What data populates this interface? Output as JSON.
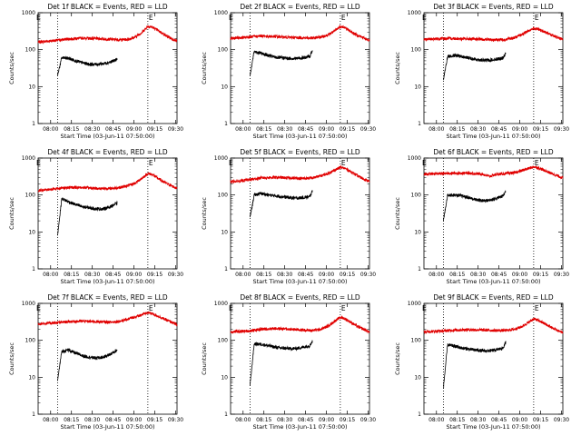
{
  "chart_data": [
    {
      "type": "line",
      "title": "Det 1f BLACK = Events, RED = LLD",
      "xlabel": "Start Time (03-Jun-11 07:50:00)",
      "ylabel": "Counts/sec",
      "yscale": "log",
      "ylim": [
        1,
        1000
      ],
      "xticks": [
        "08:00",
        "08:15",
        "08:30",
        "08:45",
        "09:00",
        "09:15",
        "09:30"
      ],
      "yticks": [
        "1",
        "10",
        "100",
        "1000"
      ],
      "xlim": [
        3,
        103
      ],
      "vlines": [
        17,
        82
      ],
      "vline_labels": [
        {
          "text": "E",
          "x": 1
        },
        {
          "text": "E",
          "x": 82
        }
      ],
      "series": [
        {
          "name": "Events",
          "color": "#000000",
          "x": [
            17,
            20,
            25,
            30,
            35,
            40,
            45,
            50,
            55,
            60
          ],
          "y": [
            20,
            60,
            58,
            50,
            44,
            40,
            40,
            42,
            46,
            55
          ]
        },
        {
          "name": "LLD",
          "color": "#e00000",
          "x": [
            3,
            10,
            17,
            25,
            35,
            45,
            55,
            62,
            68,
            73,
            78,
            82,
            85,
            90,
            95,
            100,
            103
          ],
          "y": [
            160,
            170,
            180,
            195,
            205,
            200,
            190,
            185,
            190,
            220,
            300,
            430,
            410,
            320,
            240,
            190,
            170
          ]
        }
      ]
    },
    {
      "type": "line",
      "title": "Det 2f BLACK = Events, RED = LLD",
      "xlabel": "Start Time (03-Jun-11 07:50:00)",
      "ylabel": "Counts/sec",
      "yscale": "log",
      "ylim": [
        1,
        1000
      ],
      "xticks": [
        "08:00",
        "08:15",
        "08:30",
        "08:45",
        "09:00",
        "09:15",
        "09:30"
      ],
      "yticks": [
        "1",
        "10",
        "100",
        "1000"
      ],
      "xlim": [
        3,
        103
      ],
      "vlines": [
        17,
        82
      ],
      "vline_labels": [
        {
          "text": "E",
          "x": 1
        },
        {
          "text": "E",
          "x": 82
        }
      ],
      "series": [
        {
          "name": "Events",
          "color": "#000000",
          "x": [
            17,
            20,
            25,
            30,
            35,
            40,
            45,
            50,
            55,
            60,
            62
          ],
          "y": [
            20,
            90,
            80,
            70,
            62,
            60,
            58,
            58,
            60,
            65,
            100
          ]
        },
        {
          "name": "LLD",
          "color": "#e00000",
          "x": [
            3,
            10,
            17,
            25,
            35,
            45,
            55,
            62,
            68,
            73,
            78,
            82,
            85,
            90,
            95,
            100,
            103
          ],
          "y": [
            200,
            210,
            220,
            235,
            225,
            215,
            210,
            205,
            220,
            250,
            320,
            430,
            400,
            300,
            240,
            200,
            180
          ]
        }
      ]
    },
    {
      "type": "line",
      "title": "Det 3f BLACK = Events, RED = LLD",
      "xlabel": "Start Time (03-Jun-11 07:50:00)",
      "ylabel": "Counts/sec",
      "yscale": "log",
      "ylim": [
        1,
        1000
      ],
      "xticks": [
        "08:00",
        "08:15",
        "08:30",
        "08:45",
        "09:00",
        "09:15",
        "09:30"
      ],
      "yticks": [
        "1",
        "10",
        "100",
        "1000"
      ],
      "xlim": [
        3,
        103
      ],
      "vlines": [
        17,
        82
      ],
      "vline_labels": [
        {
          "text": "E",
          "x": 1
        },
        {
          "text": "E",
          "x": 82
        }
      ],
      "series": [
        {
          "name": "Events",
          "color": "#000000",
          "x": [
            17,
            20,
            25,
            30,
            35,
            40,
            45,
            50,
            55,
            60,
            62
          ],
          "y": [
            15,
            65,
            70,
            65,
            60,
            55,
            52,
            52,
            55,
            60,
            80
          ]
        },
        {
          "name": "LLD",
          "color": "#e00000",
          "x": [
            3,
            10,
            17,
            25,
            35,
            45,
            55,
            62,
            68,
            73,
            78,
            82,
            85,
            90,
            95,
            100,
            103
          ],
          "y": [
            190,
            195,
            200,
            200,
            195,
            190,
            185,
            190,
            210,
            250,
            320,
            380,
            360,
            300,
            250,
            210,
            190
          ]
        }
      ]
    },
    {
      "type": "line",
      "title": "Det 4f BLACK = Events, RED = LLD",
      "xlabel": "Start Time (03-Jun-11 07:50:00)",
      "ylabel": "Counts/sec",
      "yscale": "log",
      "ylim": [
        1,
        1000
      ],
      "xticks": [
        "08:00",
        "08:15",
        "08:30",
        "08:45",
        "09:00",
        "09:15",
        "09:30"
      ],
      "yticks": [
        "1",
        "10",
        "100",
        "1000"
      ],
      "xlim": [
        3,
        103
      ],
      "vlines": [
        17,
        82
      ],
      "vline_labels": [
        {
          "text": "E",
          "x": 1
        },
        {
          "text": "E",
          "x": 82
        }
      ],
      "series": [
        {
          "name": "Events",
          "color": "#000000",
          "x": [
            17,
            20,
            25,
            30,
            35,
            40,
            45,
            50,
            55,
            60
          ],
          "y": [
            8,
            80,
            65,
            55,
            48,
            45,
            42,
            42,
            48,
            60
          ]
        },
        {
          "name": "LLD",
          "color": "#e00000",
          "x": [
            3,
            10,
            17,
            25,
            35,
            45,
            55,
            62,
            68,
            73,
            78,
            82,
            85,
            90,
            95,
            100,
            103
          ],
          "y": [
            130,
            140,
            150,
            160,
            160,
            150,
            150,
            160,
            180,
            210,
            290,
            380,
            360,
            270,
            210,
            170,
            150
          ]
        }
      ]
    },
    {
      "type": "line",
      "title": "Det 5f BLACK = Events, RED = LLD",
      "xlabel": "Start Time (03-Jun-11 07:50:00)",
      "ylabel": "Counts/sec",
      "yscale": "log",
      "ylim": [
        1,
        1000
      ],
      "xticks": [
        "08:00",
        "08:15",
        "08:30",
        "08:45",
        "09:00",
        "09:15",
        "09:30"
      ],
      "yticks": [
        "1",
        "10",
        "100",
        "1000"
      ],
      "xlim": [
        3,
        103
      ],
      "vlines": [
        17,
        82
      ],
      "vline_labels": [
        {
          "text": "E",
          "x": 1
        },
        {
          "text": "E",
          "x": 82
        }
      ],
      "series": [
        {
          "name": "Events",
          "color": "#000000",
          "x": [
            17,
            20,
            25,
            30,
            35,
            40,
            45,
            50,
            55,
            60,
            62
          ],
          "y": [
            25,
            100,
            110,
            100,
            95,
            90,
            85,
            82,
            85,
            90,
            130
          ]
        },
        {
          "name": "LLD",
          "color": "#e00000",
          "x": [
            3,
            10,
            17,
            25,
            35,
            45,
            55,
            62,
            68,
            73,
            78,
            82,
            85,
            90,
            95,
            100,
            103
          ],
          "y": [
            230,
            240,
            260,
            290,
            300,
            290,
            280,
            290,
            330,
            380,
            470,
            560,
            530,
            420,
            320,
            260,
            230
          ]
        }
      ]
    },
    {
      "type": "line",
      "title": "Det 6f BLACK = Events, RED = LLD",
      "xlabel": "Start Time (03-Jun-11 07:50:00)",
      "ylabel": "Counts/sec",
      "yscale": "log",
      "ylim": [
        1,
        1000
      ],
      "xticks": [
        "08:00",
        "08:15",
        "08:30",
        "08:45",
        "09:00",
        "09:15",
        "09:30"
      ],
      "yticks": [
        "1",
        "10",
        "100",
        "1000"
      ],
      "xlim": [
        3,
        103
      ],
      "vlines": [
        17,
        82
      ],
      "vline_labels": [
        {
          "text": "E",
          "x": 1
        },
        {
          "text": "E",
          "x": 82
        }
      ],
      "series": [
        {
          "name": "Events",
          "color": "#000000",
          "x": [
            17,
            20,
            25,
            30,
            35,
            40,
            45,
            50,
            55,
            60,
            62
          ],
          "y": [
            20,
            100,
            100,
            95,
            85,
            75,
            70,
            72,
            80,
            95,
            130
          ]
        },
        {
          "name": "LLD",
          "color": "#e00000",
          "x": [
            3,
            10,
            17,
            25,
            35,
            45,
            50,
            55,
            62,
            68,
            73,
            78,
            82,
            85,
            90,
            95,
            100,
            103
          ],
          "y": [
            370,
            375,
            380,
            390,
            390,
            370,
            320,
            360,
            380,
            400,
            450,
            520,
            580,
            550,
            460,
            380,
            320,
            290
          ]
        }
      ]
    },
    {
      "type": "line",
      "title": "Det 7f BLACK = Events, RED = LLD",
      "xlabel": "Start Time (03-Jun-11 07:50:00)",
      "ylabel": "Counts/sec",
      "yscale": "log",
      "ylim": [
        1,
        1000
      ],
      "xticks": [
        "08:00",
        "08:15",
        "08:30",
        "08:45",
        "09:00",
        "09:15",
        "09:30"
      ],
      "yticks": [
        "1",
        "10",
        "100",
        "1000"
      ],
      "xlim": [
        3,
        103
      ],
      "vlines": [
        17,
        82
      ],
      "vline_labels": [
        {
          "text": "E",
          "x": 1
        },
        {
          "text": "E",
          "x": 82
        }
      ],
      "series": [
        {
          "name": "Events",
          "color": "#000000",
          "x": [
            17,
            20,
            25,
            30,
            35,
            40,
            45,
            50,
            55,
            60
          ],
          "y": [
            8,
            50,
            55,
            45,
            38,
            35,
            33,
            35,
            42,
            55
          ]
        },
        {
          "name": "LLD",
          "color": "#e00000",
          "x": [
            3,
            10,
            17,
            25,
            35,
            45,
            55,
            62,
            68,
            73,
            78,
            82,
            85,
            90,
            95,
            100,
            103
          ],
          "y": [
            280,
            290,
            300,
            320,
            330,
            320,
            310,
            330,
            380,
            430,
            500,
            560,
            530,
            440,
            360,
            300,
            260
          ]
        }
      ]
    },
    {
      "type": "line",
      "title": "Det 8f BLACK = Events, RED = LLD",
      "xlabel": "Start Time (03-Jun-11 07:50:00)",
      "ylabel": "Counts/sec",
      "yscale": "log",
      "ylim": [
        1,
        1000
      ],
      "xticks": [
        "08:00",
        "08:15",
        "08:30",
        "08:45",
        "09:00",
        "09:15",
        "09:30"
      ],
      "yticks": [
        "1",
        "10",
        "100",
        "1000"
      ],
      "xlim": [
        3,
        103
      ],
      "vlines": [
        17,
        82
      ],
      "vline_labels": [
        {
          "text": "E",
          "x": 1
        },
        {
          "text": "E",
          "x": 82
        }
      ],
      "series": [
        {
          "name": "Events",
          "color": "#000000",
          "x": [
            17,
            20,
            25,
            30,
            35,
            40,
            45,
            50,
            55,
            60,
            62
          ],
          "y": [
            6,
            80,
            78,
            72,
            65,
            62,
            60,
            60,
            65,
            72,
            95
          ]
        },
        {
          "name": "LLD",
          "color": "#e00000",
          "x": [
            3,
            10,
            17,
            25,
            35,
            45,
            55,
            62,
            68,
            73,
            78,
            82,
            85,
            90,
            95,
            100,
            103
          ],
          "y": [
            170,
            175,
            180,
            200,
            210,
            200,
            190,
            185,
            200,
            240,
            330,
            420,
            390,
            300,
            230,
            190,
            165
          ]
        }
      ]
    },
    {
      "type": "line",
      "title": "Det 9f BLACK = Events, RED = LLD",
      "xlabel": "Start Time (03-Jun-11 07:50:00)",
      "ylabel": "Counts/sec",
      "yscale": "log",
      "ylim": [
        1,
        1000
      ],
      "xticks": [
        "08:00",
        "08:15",
        "08:30",
        "08:45",
        "09:00",
        "09:15",
        "09:30"
      ],
      "yticks": [
        "1",
        "10",
        "100",
        "1000"
      ],
      "xlim": [
        3,
        103
      ],
      "vlines": [
        17,
        82
      ],
      "vline_labels": [
        {
          "text": "E",
          "x": 1
        },
        {
          "text": "E",
          "x": 82
        }
      ],
      "series": [
        {
          "name": "Events",
          "color": "#000000",
          "x": [
            17,
            20,
            25,
            30,
            35,
            40,
            45,
            50,
            55,
            60,
            62
          ],
          "y": [
            5,
            75,
            70,
            62,
            58,
            55,
            52,
            52,
            55,
            62,
            90
          ]
        },
        {
          "name": "LLD",
          "color": "#e00000",
          "x": [
            3,
            10,
            17,
            25,
            35,
            45,
            55,
            62,
            68,
            73,
            78,
            82,
            85,
            90,
            95,
            100,
            103
          ],
          "y": [
            170,
            175,
            180,
            190,
            195,
            190,
            185,
            185,
            200,
            230,
            300,
            380,
            350,
            280,
            220,
            180,
            160
          ]
        }
      ]
    }
  ]
}
